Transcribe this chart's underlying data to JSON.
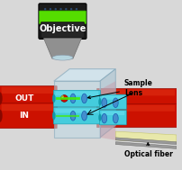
{
  "figsize": [
    2.03,
    1.89
  ],
  "dpi": 100,
  "bg_color": "#d8d8d8",
  "labels": {
    "objective": "Objective",
    "sample": "Sample\nLens",
    "optical_fiber": "Optical fiber",
    "out": "OUT",
    "in": "IN"
  },
  "colors": {
    "obj_body": "#1a1a1a",
    "obj_band": "#55dd00",
    "obj_tip": "#aabbc8",
    "obj_tip_hi": "#bbdde8",
    "red_fiber": "#cc1100",
    "red_fiber_hi": "#ee4422",
    "red_fiber_dk": "#880800",
    "cyan_tube": "#44ccdd",
    "cyan_tube_dk": "#1199aa",
    "chip_front": "#c0d8e4",
    "chip_top": "#d4ecf8",
    "chip_right": "#a8c0cc",
    "chip_edge": "#88aabc",
    "blue_lens": "#4488cc",
    "blue_lens_dk": "#1155aa",
    "green_beam": "#44ee00",
    "sample_dot": "#cc1100",
    "yellow_fiber": "#e8e8aa",
    "yellow_fiber_dk": "#c8c870",
    "pink_region": "#cc8899",
    "gray_fiber": "#aaaaaa"
  }
}
